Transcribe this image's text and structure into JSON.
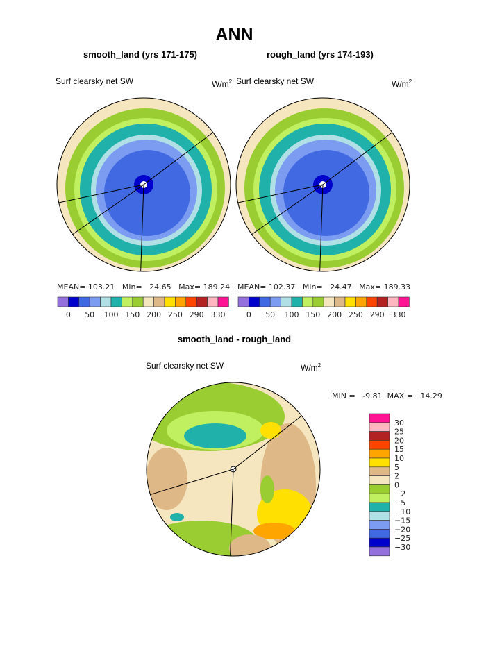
{
  "title": "ANN",
  "colors": [
    "#9370DB",
    "#0000CD",
    "#4169E1",
    "#7B9CF0",
    "#B0E0E6",
    "#20B2AA",
    "#C0F060",
    "#9ACD32",
    "#F5E6C0",
    "#DEB887",
    "#FFE000",
    "#FFA500",
    "#FF4500",
    "#B22222",
    "#FFB6C1",
    "#FF1493"
  ],
  "chart_data": [
    {
      "type": "heatmap",
      "title": "smooth_land (yrs 171-175)",
      "left_label": "Surf clearsky net SW",
      "units": "W/m",
      "units_sup": "2",
      "stats": {
        "mean_label": "MEAN=",
        "mean": "103.21",
        "min_label": "Min=",
        "min": "24.65",
        "max_label": "Max=",
        "max": "189.24"
      },
      "colorbar_ticks": [
        "0",
        "50",
        "100",
        "150",
        "200",
        "250",
        "290",
        "330"
      ]
    },
    {
      "type": "heatmap",
      "title": "rough_land (yrs 174-193)",
      "left_label": "Surf clearsky net SW",
      "units": "W/m",
      "units_sup": "2",
      "stats": {
        "mean_label": "MEAN=",
        "mean": "102.37",
        "min_label": "Min=",
        "min": "24.47",
        "max_label": "Max=",
        "max": "189.33"
      },
      "colorbar_ticks": [
        "0",
        "50",
        "100",
        "150",
        "200",
        "250",
        "290",
        "330"
      ]
    },
    {
      "type": "heatmap",
      "title": "smooth_land - rough_land",
      "left_label": "Surf clearsky net SW",
      "units": "W/m",
      "units_sup": "2",
      "stats": {
        "min_label": "MIN =",
        "min": "-9.81",
        "max_label": "MAX =",
        "max": "14.29"
      },
      "colorbar_ticks": [
        "30",
        "25",
        "20",
        "15",
        "10",
        "5",
        "2",
        "0",
        "−2",
        "−5",
        "−10",
        "−15",
        "−20",
        "−25",
        "−30"
      ]
    }
  ]
}
